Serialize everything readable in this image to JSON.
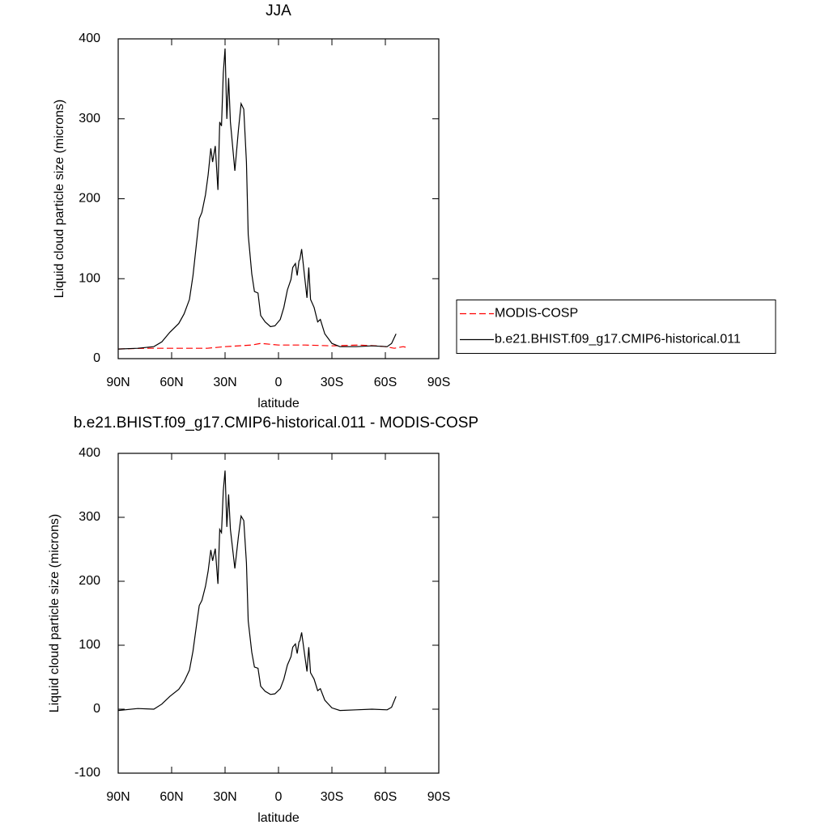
{
  "chart_data": [
    {
      "type": "line",
      "title": "JJA",
      "xlabel": "latitude",
      "ylabel": "Liquid cloud particle size (microns)",
      "xlim": [
        90,
        -90
      ],
      "xticks": [
        {
          "value": 90,
          "label": "90N"
        },
        {
          "value": 60,
          "label": "60N"
        },
        {
          "value": 30,
          "label": "30N"
        },
        0,
        {
          "value": -30,
          "label": "30S"
        },
        {
          "value": -60,
          "label": "60S"
        },
        {
          "value": -90,
          "label": "90S"
        }
      ],
      "ylim": [
        0,
        400
      ],
      "yticks": [
        0,
        100,
        200,
        300,
        400
      ],
      "legend": "right",
      "series": [
        {
          "name": "MODIS-COSP",
          "color": "#ff0000",
          "dash": true,
          "x": [
            90,
            75,
            60,
            40,
            30,
            15,
            10,
            5,
            0,
            -15,
            -30,
            -45,
            -55,
            -60,
            -65,
            -70,
            -72
          ],
          "values": [
            12,
            13,
            13,
            13,
            15,
            17,
            19,
            18,
            17,
            17,
            16,
            17,
            16,
            15,
            13,
            15,
            14
          ]
        },
        {
          "name": "b.e21.BHIST.f09_g17.CMIP6-historical.011",
          "color": "#000000",
          "dash": false,
          "x": [
            90,
            79,
            70,
            65.5,
            61,
            56,
            53,
            50,
            48,
            46,
            44.5,
            43,
            41,
            39.5,
            38,
            37,
            35.5,
            34,
            33,
            32,
            31,
            30,
            29,
            28,
            27,
            24.5,
            22.5,
            21,
            19.5,
            18,
            17,
            15,
            13.5,
            11.5,
            10,
            7.5,
            4.5,
            2,
            -1,
            -3,
            -5,
            -7,
            -8,
            -9.5,
            -10.5,
            -11.5,
            -12,
            -13,
            -14.5,
            -16,
            -17,
            -18,
            -20,
            -22,
            -23.5,
            -26,
            -30,
            -34.5,
            -43.5,
            -52.5,
            -61,
            -63.5,
            -66
          ],
          "values": [
            12,
            13,
            15,
            21,
            33,
            44,
            56,
            74,
            104,
            145,
            175,
            183,
            205,
            230,
            263,
            246,
            266,
            211,
            296,
            291,
            357,
            388,
            300,
            351,
            296,
            235,
            286,
            319,
            312,
            246,
            155,
            106,
            84,
            82,
            54,
            46,
            40,
            41,
            49,
            64,
            86,
            99,
            114,
            119,
            104,
            122,
            124,
            137,
            106,
            76,
            114,
            74,
            64,
            46,
            49,
            31,
            19,
            15,
            15,
            16,
            15,
            19,
            31
          ]
        }
      ]
    },
    {
      "type": "line",
      "title": "b.e21.BHIST.f09_g17.CMIP6-historical.011 - MODIS-COSP",
      "xlabel": "latitude",
      "ylabel": "Liquid cloud particle size (microns)",
      "xlim": [
        90,
        -90
      ],
      "xticks": [
        {
          "value": 90,
          "label": "90N"
        },
        {
          "value": 60,
          "label": "60N"
        },
        {
          "value": 30,
          "label": "30N"
        },
        0,
        {
          "value": -30,
          "label": "30S"
        },
        {
          "value": -60,
          "label": "60S"
        },
        {
          "value": -90,
          "label": "90S"
        }
      ],
      "ylim": [
        -100,
        400
      ],
      "yticks": [
        -100,
        0,
        100,
        200,
        300,
        400
      ],
      "series": [
        {
          "color": "#000000",
          "dash": false,
          "x": [
            90,
            79,
            70,
            65.5,
            61,
            56,
            53,
            50,
            48,
            46,
            44.5,
            43,
            41,
            39.5,
            38,
            37,
            35.5,
            34,
            33,
            32,
            31,
            30,
            29,
            28,
            27,
            24.5,
            22.5,
            21,
            19.5,
            18,
            17,
            15,
            13.5,
            11.5,
            10,
            7.5,
            4.5,
            2,
            -1,
            -3,
            -5,
            -7,
            -8,
            -9.5,
            -10.5,
            -11.5,
            -12,
            -13,
            -14.5,
            -16,
            -17,
            -18,
            -20,
            -22,
            -23.5,
            -26,
            -30,
            -34.5,
            -43.5,
            -52.5,
            -61,
            -63.5,
            -66
          ],
          "values": [
            -2,
            1,
            0,
            8,
            20,
            31,
            43,
            61,
            91,
            132,
            162,
            170,
            192,
            216,
            249,
            232,
            251,
            196,
            281,
            276,
            341,
            373,
            285,
            336,
            281,
            220,
            270,
            302,
            295,
            229,
            138,
            89,
            66,
            64,
            36,
            28,
            23,
            24,
            32,
            47,
            69,
            82,
            97,
            102,
            87,
            105,
            107,
            120,
            89,
            59,
            97,
            57,
            47,
            29,
            32,
            14,
            2,
            -2,
            -1,
            0,
            -1,
            3,
            20
          ]
        }
      ]
    }
  ]
}
